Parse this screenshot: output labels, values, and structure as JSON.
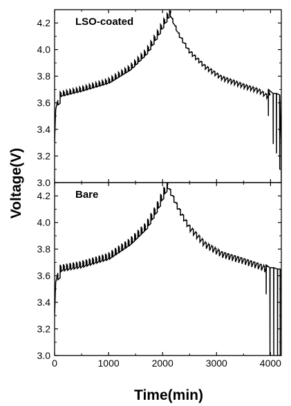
{
  "chart_data": {
    "type": "line",
    "ylabel": "Voltage(V)",
    "xlabel": "Time(min)",
    "xlim": [
      0,
      4200
    ],
    "xticks": [
      "0",
      "1000",
      "2000",
      "3000",
      "4000"
    ],
    "xtick_values": [
      0,
      1000,
      2000,
      3000,
      4000
    ],
    "line_color": "#000000",
    "panels": [
      {
        "label": "LSO-coated",
        "ylim": [
          3.0,
          4.3
        ],
        "yticks": [
          "3.0",
          "3.2",
          "3.4",
          "3.6",
          "3.8",
          "4.0",
          "4.2"
        ],
        "ytick_values": [
          3.0,
          3.2,
          3.4,
          3.6,
          3.8,
          4.0,
          4.2
        ],
        "charge_envelope": {
          "x": [
            0,
            20,
            60,
            100,
            500,
            1000,
            1400,
            1700,
            1900,
            2050,
            2130
          ],
          "y": [
            3.3,
            3.55,
            3.62,
            3.68,
            3.72,
            3.78,
            3.88,
            4.0,
            4.13,
            4.24,
            4.29
          ]
        },
        "discharge_envelope": {
          "x": [
            2130,
            2300,
            2500,
            2800,
            3100,
            3500,
            3800,
            3950
          ],
          "y": [
            4.29,
            4.13,
            4.0,
            3.88,
            3.8,
            3.74,
            3.7,
            3.66
          ]
        },
        "relax_step": 0.07,
        "end_spikes": [
          {
            "x": 3960,
            "low": 3.5,
            "high": 3.7
          },
          {
            "x": 4050,
            "low": 3.29,
            "high": 3.67
          },
          {
            "x": 4110,
            "low": 3.22,
            "high": 3.67
          },
          {
            "x": 4170,
            "low": 3.1,
            "high": 3.66
          },
          {
            "x": 4200,
            "low": 3.0,
            "high": 3.3
          }
        ]
      },
      {
        "label": "Bare",
        "ylim": [
          3.0,
          4.3
        ],
        "yticks": [
          "3.0",
          "3.2",
          "3.4",
          "3.6",
          "3.8",
          "4.0",
          "4.2"
        ],
        "ytick_values": [
          3.0,
          3.2,
          3.4,
          3.6,
          3.8,
          4.0,
          4.2
        ],
        "charge_envelope": {
          "x": [
            0,
            20,
            60,
            100,
            500,
            1000,
            1400,
            1700,
            1900,
            2030,
            2090
          ],
          "y": [
            3.3,
            3.55,
            3.62,
            3.68,
            3.71,
            3.77,
            3.88,
            4.0,
            4.14,
            4.26,
            4.3
          ]
        },
        "discharge_envelope": {
          "x": [
            2090,
            2300,
            2500,
            2800,
            3100,
            3500,
            3800,
            3900
          ],
          "y": [
            4.3,
            4.12,
            3.98,
            3.85,
            3.78,
            3.73,
            3.69,
            3.67
          ]
        },
        "relax_step": 0.1,
        "end_spikes": [
          {
            "x": 3920,
            "low": 3.46,
            "high": 3.68
          },
          {
            "x": 3990,
            "low": 3.0,
            "high": 3.66
          },
          {
            "x": 4060,
            "low": 3.0,
            "high": 3.66
          },
          {
            "x": 4130,
            "low": 3.0,
            "high": 3.65
          },
          {
            "x": 4180,
            "low": 3.0,
            "high": 3.65
          }
        ]
      }
    ]
  }
}
